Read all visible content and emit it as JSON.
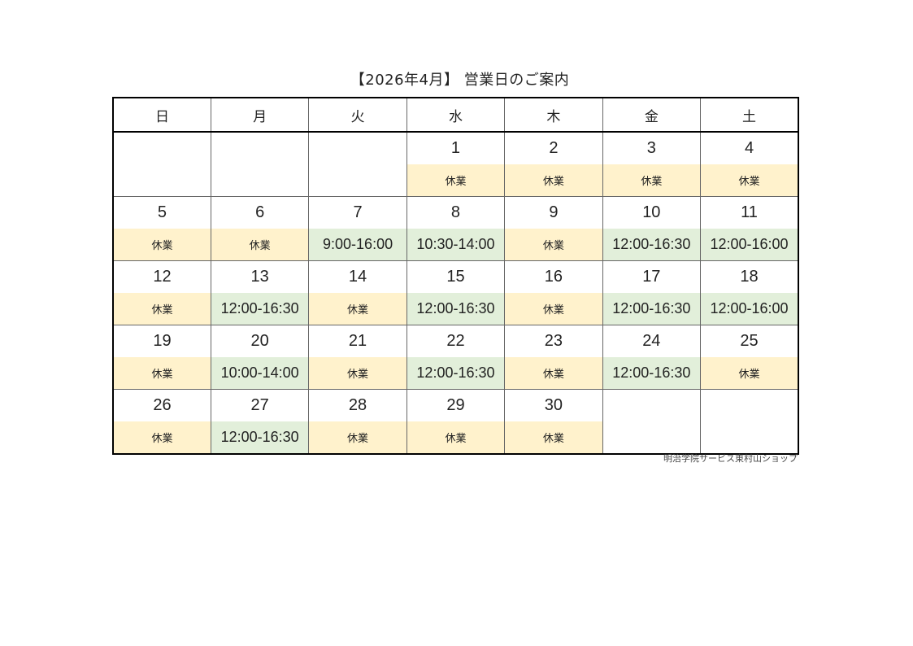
{
  "title": "【2026年4月】 営業日のご案内",
  "weekdays": [
    "日",
    "月",
    "火",
    "水",
    "木",
    "金",
    "土"
  ],
  "colors": {
    "closed": "#FFF2CC",
    "open": "#E2EFDA"
  },
  "closed_label": "休業",
  "weeks": [
    [
      null,
      null,
      null,
      {
        "day": "1",
        "status": "休業"
      },
      {
        "day": "2",
        "status": "休業"
      },
      {
        "day": "3",
        "status": "休業"
      },
      {
        "day": "4",
        "status": "休業"
      }
    ],
    [
      {
        "day": "5",
        "status": "休業"
      },
      {
        "day": "6",
        "status": "休業"
      },
      {
        "day": "7",
        "status": "9:00-16:00"
      },
      {
        "day": "8",
        "status": "10:30-14:00"
      },
      {
        "day": "9",
        "status": "休業"
      },
      {
        "day": "10",
        "status": "12:00-16:30"
      },
      {
        "day": "11",
        "status": "12:00-16:00"
      }
    ],
    [
      {
        "day": "12",
        "status": "休業"
      },
      {
        "day": "13",
        "status": "12:00-16:30"
      },
      {
        "day": "14",
        "status": "休業"
      },
      {
        "day": "15",
        "status": "12:00-16:30"
      },
      {
        "day": "16",
        "status": "休業"
      },
      {
        "day": "17",
        "status": "12:00-16:30"
      },
      {
        "day": "18",
        "status": "12:00-16:00"
      }
    ],
    [
      {
        "day": "19",
        "status": "休業"
      },
      {
        "day": "20",
        "status": "10:00-14:00"
      },
      {
        "day": "21",
        "status": "休業"
      },
      {
        "day": "22",
        "status": "12:00-16:30"
      },
      {
        "day": "23",
        "status": "休業"
      },
      {
        "day": "24",
        "status": "12:00-16:30"
      },
      {
        "day": "25",
        "status": "休業"
      }
    ],
    [
      {
        "day": "26",
        "status": "休業"
      },
      {
        "day": "27",
        "status": "12:00-16:30"
      },
      {
        "day": "28",
        "status": "休業"
      },
      {
        "day": "29",
        "status": "休業"
      },
      {
        "day": "30",
        "status": "休業"
      },
      null,
      null
    ]
  ],
  "footer": "明治学院サービス東村山ショップ"
}
